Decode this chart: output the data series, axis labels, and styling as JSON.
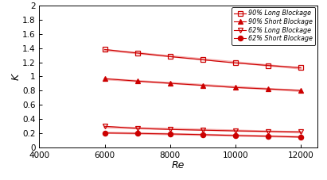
{
  "Re": [
    6000,
    7000,
    8000,
    9000,
    10000,
    11000,
    12000
  ],
  "series": [
    {
      "label": "90% Long Blockage",
      "values": [
        1.38,
        1.33,
        1.28,
        1.235,
        1.19,
        1.155,
        1.125
      ],
      "marker": "s",
      "fillstyle": "none",
      "color": "#cc0000",
      "linewidth": 0.8
    },
    {
      "label": "90% Short Blockage",
      "values": [
        0.97,
        0.935,
        0.905,
        0.875,
        0.845,
        0.825,
        0.805
      ],
      "marker": "^",
      "fillstyle": "full",
      "color": "#cc0000",
      "linewidth": 0.8
    },
    {
      "label": "62% Long Blockage",
      "values": [
        0.3,
        0.27,
        0.255,
        0.245,
        0.235,
        0.228,
        0.222
      ],
      "marker": "v",
      "fillstyle": "none",
      "color": "#cc0000",
      "linewidth": 0.8
    },
    {
      "label": "62% Short Blockage",
      "values": [
        0.205,
        0.2,
        0.192,
        0.182,
        0.17,
        0.16,
        0.148
      ],
      "marker": "o",
      "fillstyle": "full",
      "color": "#cc0000",
      "linewidth": 0.8
    }
  ],
  "xlabel": "Re",
  "ylabel": "K",
  "xlim": [
    4000,
    12500
  ],
  "ylim": [
    0,
    2
  ],
  "xticks": [
    4000,
    6000,
    8000,
    10000,
    12000
  ],
  "ytick_labels": [
    "0",
    "0.2",
    "0.4",
    "0.6",
    "0.8",
    "1",
    "1.2",
    "1.4",
    "1.6",
    "1.8",
    "2"
  ],
  "ytick_values": [
    0,
    0.2,
    0.4,
    0.6,
    0.8,
    1.0,
    1.2,
    1.4,
    1.6,
    1.8,
    2.0
  ],
  "legend_fontsize": 5.8,
  "axis_label_fontsize": 9,
  "tick_fontsize": 7.5,
  "background_color": "#ffffff",
  "trend_line_color": "#f4aaaa",
  "trend_line_alpha": 1.0,
  "markersize": 4.5
}
